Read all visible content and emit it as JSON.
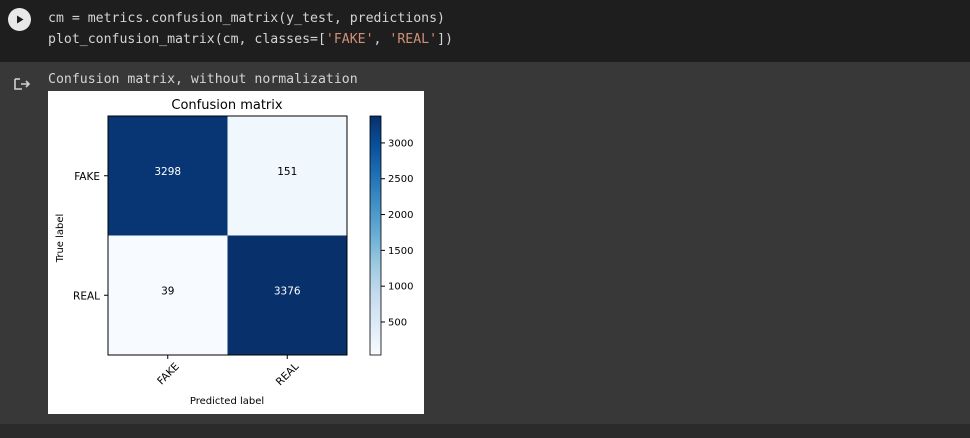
{
  "code_cell": {
    "line1_prefix": "cm = metrics.confusion_matrix(y_test, predictions)",
    "line2_prefix": "plot_confusion_matrix(cm, classes=[",
    "line2_str1": "'FAKE'",
    "line2_sep": ", ",
    "line2_str2": "'REAL'",
    "line2_suffix": "])"
  },
  "output": {
    "text": "Confusion matrix, without normalization"
  },
  "colors": {
    "dark_cell": "#08306b",
    "light_cell": "#f7fbff",
    "string": "#ce9178"
  },
  "chart_data": {
    "type": "heatmap",
    "title": "Confusion matrix",
    "xlabel": "Predicted label",
    "ylabel": "True label",
    "x_categories": [
      "FAKE",
      "REAL"
    ],
    "y_categories": [
      "FAKE",
      "REAL"
    ],
    "matrix": [
      [
        3298,
        151
      ],
      [
        39,
        3376
      ]
    ],
    "colormap": "Blues",
    "colorbar_ticks": [
      500,
      1000,
      1500,
      2000,
      2500,
      3000
    ],
    "colorbar_range": [
      39,
      3376
    ]
  }
}
